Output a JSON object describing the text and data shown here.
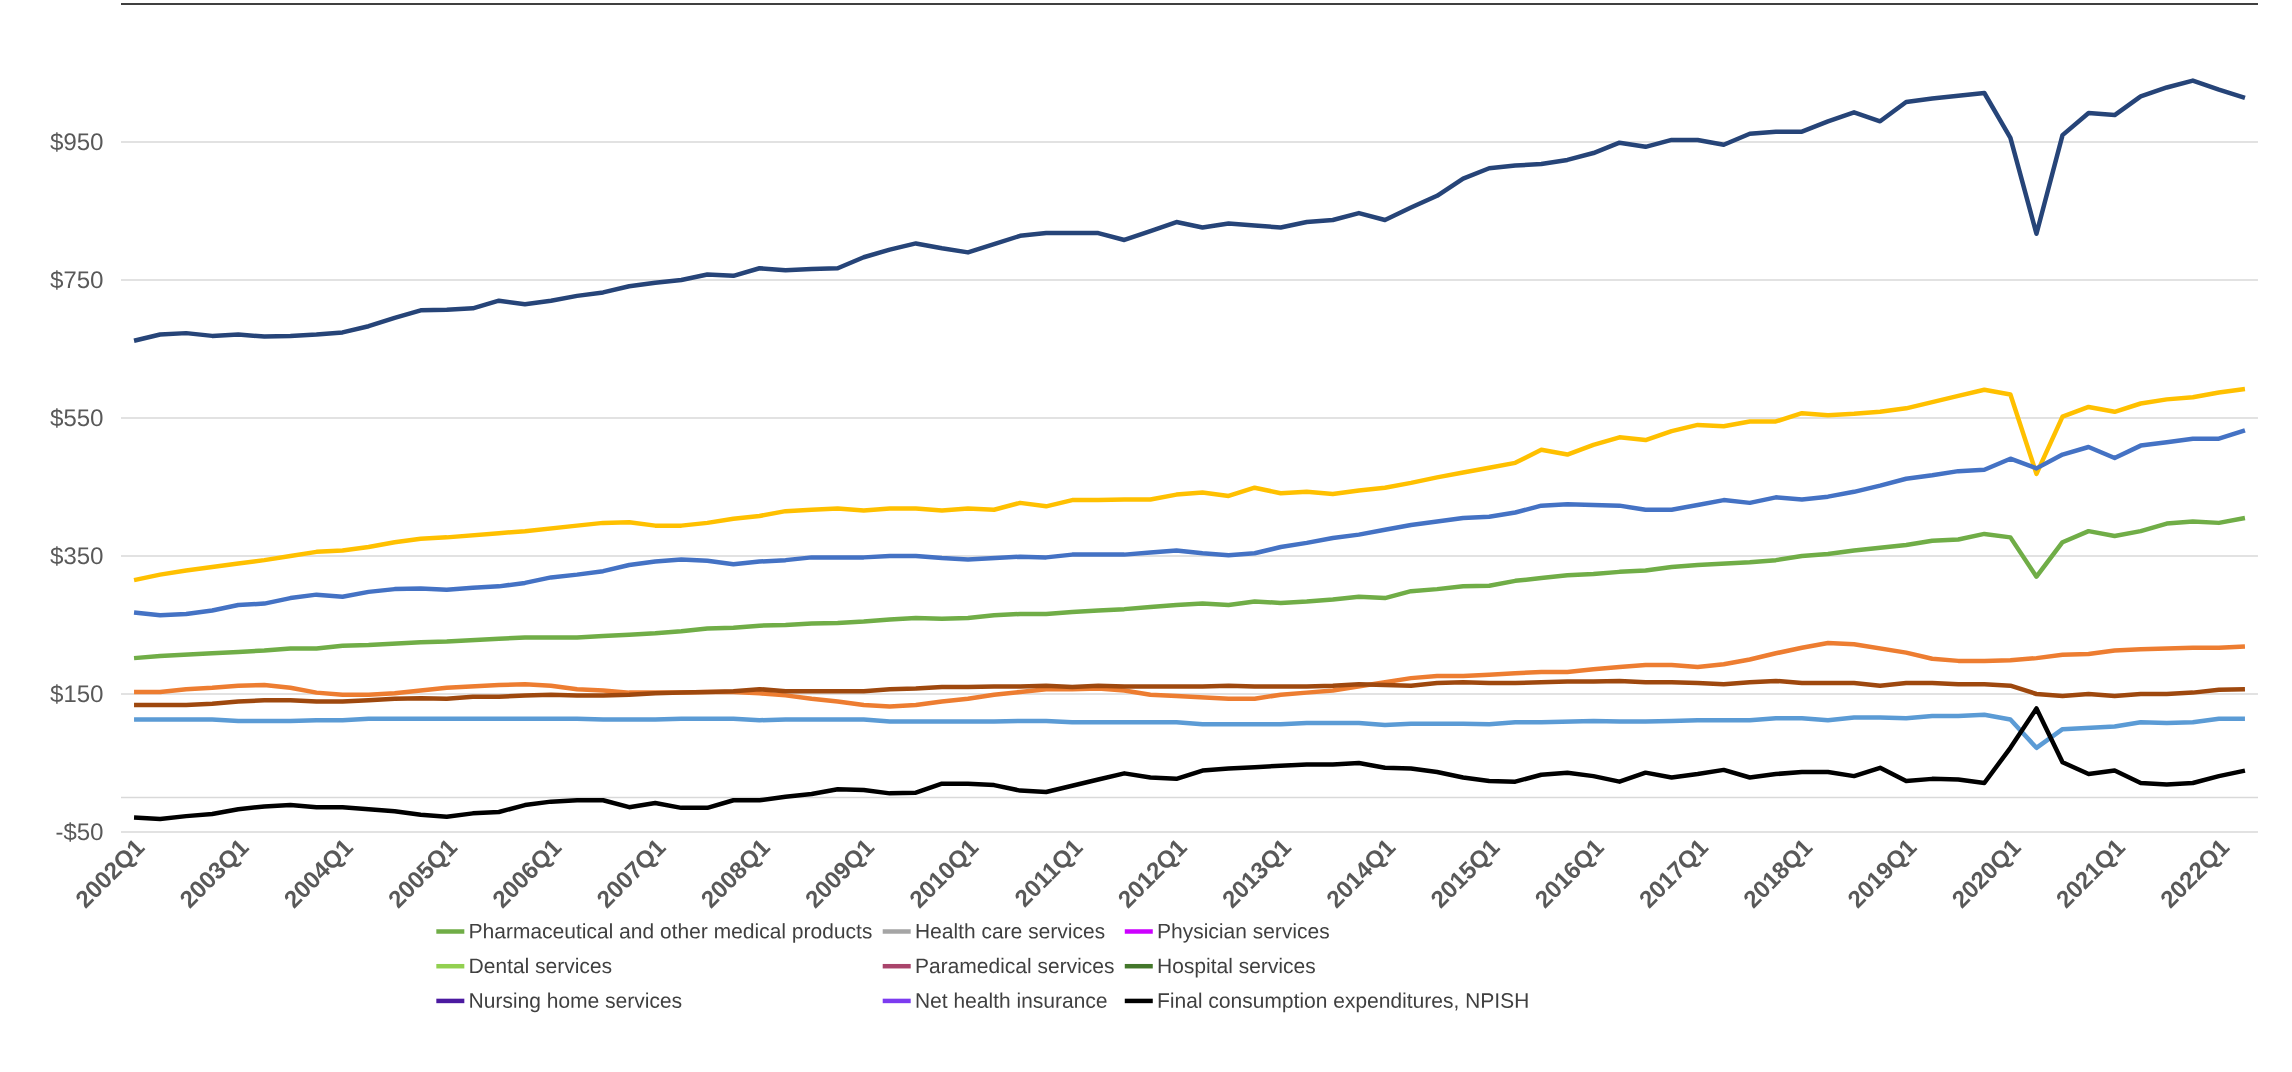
{
  "chart_data": {
    "type": "line",
    "categories": [
      "2002Q1",
      null,
      null,
      null,
      "2003Q1",
      null,
      null,
      null,
      "2004Q1",
      null,
      null,
      null,
      "2005Q1",
      null,
      null,
      null,
      "2006Q1",
      null,
      null,
      null,
      "2007Q1",
      null,
      null,
      null,
      "2008Q1",
      null,
      null,
      null,
      "2009Q1",
      null,
      null,
      null,
      "2010Q1",
      null,
      null,
      null,
      "2011Q1",
      null,
      null,
      null,
      "2012Q1",
      null,
      null,
      null,
      "2013Q1",
      null,
      null,
      null,
      "2014Q1",
      null,
      null,
      null,
      "2015Q1",
      null,
      null,
      null,
      "2016Q1",
      null,
      null,
      null,
      "2017Q1",
      null,
      null,
      null,
      "2018Q1",
      null,
      null,
      null,
      "2019Q1",
      null,
      null,
      null,
      "2020Q1",
      null,
      null,
      null,
      "2021Q1",
      null,
      null,
      null,
      "2022Q1",
      null
    ],
    "ylim": [
      -50,
      1150
    ],
    "yticks": [
      {
        "value": -50,
        "label": "-$50"
      },
      {
        "value": 150,
        "label": "$150"
      },
      {
        "value": 350,
        "label": "$350"
      },
      {
        "value": 550,
        "label": "$550"
      },
      {
        "value": 750,
        "label": "$750"
      },
      {
        "value": 950,
        "label": "$950"
      }
    ],
    "grid": "y",
    "legend": "bottom",
    "marker": "none",
    "ref_lines": [
      {
        "axis": "y",
        "value": 0,
        "color": "#d9d9d9"
      }
    ],
    "series": [
      {
        "color": "#264478",
        "values": [
          662,
          671,
          673,
          669,
          671,
          668,
          669,
          671,
          674,
          683,
          695,
          706,
          707,
          709,
          720,
          715,
          720,
          727,
          732,
          741,
          746,
          750,
          758,
          756,
          767,
          764,
          766,
          767,
          783,
          794,
          803,
          796,
          790,
          802,
          814,
          818,
          818,
          818,
          808,
          821,
          834,
          826,
          832,
          829,
          826,
          834,
          837,
          847,
          837,
          855,
          872,
          897,
          912,
          916,
          918,
          924,
          934,
          949,
          943,
          953,
          953,
          946,
          962,
          965,
          965,
          980,
          993,
          980,
          1008,
          1013,
          1017,
          1021,
          956,
          817,
          960,
          992,
          989,
          1016,
          1029,
          1039,
          1026,
          1014
        ]
      },
      {
        "color": "#ffc000",
        "values": [
          315,
          323,
          329,
          334,
          339,
          344,
          350,
          356,
          358,
          363,
          370,
          375,
          377,
          380,
          383,
          386,
          390,
          394,
          398,
          399,
          394,
          394,
          398,
          404,
          408,
          415,
          417,
          419,
          416,
          419,
          419,
          416,
          419,
          417,
          427,
          422,
          431,
          431,
          432,
          432,
          439,
          442,
          437,
          449,
          441,
          443,
          440,
          445,
          449,
          456,
          464,
          471,
          478,
          485,
          504,
          497,
          511,
          522,
          518,
          531,
          540,
          538,
          545,
          545,
          557,
          554,
          556,
          559,
          564,
          573,
          582,
          591,
          584,
          469,
          552,
          566,
          559,
          571,
          577,
          580,
          587,
          592
        ]
      },
      {
        "color": "#4472c4",
        "values": [
          268,
          264,
          266,
          271,
          279,
          281,
          289,
          294,
          291,
          298,
          302,
          303,
          301,
          304,
          306,
          311,
          319,
          323,
          328,
          337,
          342,
          345,
          343,
          338,
          342,
          344,
          348,
          348,
          348,
          350,
          350,
          347,
          345,
          347,
          349,
          348,
          352,
          352,
          352,
          355,
          358,
          354,
          351,
          354,
          363,
          369,
          376,
          381,
          388,
          395,
          400,
          405,
          407,
          413,
          423,
          425,
          424,
          423,
          417,
          417,
          424,
          431,
          427,
          435,
          432,
          436,
          443,
          452,
          462,
          467,
          473,
          475,
          491,
          477,
          497,
          508,
          492,
          510,
          515,
          520,
          520,
          532
        ]
      },
      {
        "color": "#ed7d31",
        "values": [
          153,
          153,
          157,
          159,
          162,
          163,
          159,
          152,
          149,
          149,
          151,
          155,
          159,
          161,
          163,
          164,
          162,
          157,
          155,
          152,
          152,
          152,
          153,
          153,
          151,
          148,
          143,
          139,
          134,
          132,
          134,
          139,
          143,
          149,
          153,
          157,
          157,
          158,
          155,
          149,
          147,
          145,
          143,
          143,
          149,
          152,
          155,
          161,
          167,
          173,
          176,
          176,
          178,
          180,
          182,
          182,
          186,
          189,
          192,
          192,
          189,
          193,
          200,
          209,
          217,
          224,
          222,
          216,
          210,
          201,
          198,
          198,
          199,
          202,
          207,
          208,
          213,
          215,
          216,
          217,
          217,
          219
        ]
      },
      {
        "color": "#9e480e",
        "values": [
          134,
          134,
          134,
          136,
          139,
          141,
          141,
          139,
          139,
          141,
          143,
          144,
          143,
          146,
          146,
          148,
          149,
          148,
          148,
          149,
          151,
          152,
          153,
          154,
          157,
          154,
          154,
          154,
          154,
          157,
          158,
          160,
          160,
          161,
          161,
          162,
          160,
          162,
          161,
          161,
          161,
          161,
          162,
          161,
          161,
          161,
          162,
          164,
          163,
          162,
          166,
          167,
          166,
          166,
          167,
          168,
          168,
          169,
          167,
          167,
          166,
          164,
          167,
          169,
          166,
          166,
          166,
          162,
          166,
          166,
          164,
          164,
          162,
          150,
          147,
          150,
          147,
          150,
          150,
          152,
          156,
          157
        ]
      },
      {
        "color": "#5b9bd5",
        "values": [
          113,
          113,
          113,
          113,
          111,
          111,
          111,
          112,
          112,
          114,
          114,
          114,
          114,
          114,
          114,
          114,
          114,
          114,
          113,
          113,
          113,
          114,
          114,
          114,
          112,
          113,
          113,
          113,
          113,
          110,
          110,
          110,
          110,
          110,
          111,
          111,
          109,
          109,
          109,
          109,
          109,
          106,
          106,
          106,
          106,
          108,
          108,
          108,
          105,
          107,
          107,
          107,
          106,
          109,
          109,
          110,
          111,
          110,
          110,
          111,
          112,
          112,
          112,
          115,
          115,
          112,
          116,
          116,
          115,
          118,
          118,
          120,
          113,
          72,
          99,
          101,
          103,
          109,
          108,
          109,
          114,
          114
        ]
      },
      {
        "name": "Pharmaceutical and other medical products",
        "color": "#70ad47",
        "values": [
          202,
          205,
          207,
          209,
          211,
          213,
          216,
          216,
          220,
          221,
          223,
          225,
          226,
          228,
          230,
          232,
          232,
          232,
          234,
          236,
          238,
          241,
          245,
          246,
          249,
          250,
          252,
          253,
          255,
          258,
          260,
          259,
          260,
          264,
          266,
          266,
          269,
          271,
          273,
          276,
          279,
          281,
          279,
          284,
          282,
          284,
          287,
          291,
          289,
          299,
          302,
          306,
          307,
          314,
          318,
          322,
          324,
          327,
          329,
          334,
          337,
          339,
          341,
          344,
          350,
          353,
          358,
          362,
          366,
          372,
          374,
          382,
          377,
          320,
          370,
          386,
          379,
          386,
          397,
          400,
          398,
          405
        ]
      },
      {
        "name": "Health care services",
        "color": "#a5a5a5",
        "values": [
          null,
          null,
          null,
          null,
          null,
          null,
          null,
          null,
          null,
          null,
          null,
          null,
          null,
          null,
          null,
          null,
          null,
          null,
          null,
          null,
          null,
          null,
          null,
          null,
          null,
          null,
          null,
          null,
          null,
          null,
          null,
          null,
          null,
          null,
          null,
          null,
          null,
          null,
          null,
          null,
          null,
          null,
          null,
          null,
          null,
          null,
          null,
          null,
          null,
          null,
          null,
          null,
          null,
          null,
          null,
          null,
          null,
          null,
          null,
          null,
          null,
          null,
          null,
          null,
          null,
          null,
          null,
          null,
          null,
          null,
          null,
          null,
          null,
          null,
          null,
          null,
          null,
          null,
          null,
          null,
          null,
          null
        ]
      },
      {
        "name": "Physician services",
        "color": "#cc00ff",
        "values": [
          null,
          null,
          null,
          null,
          null,
          null,
          null,
          null,
          null,
          null,
          null,
          null,
          null,
          null,
          null,
          null,
          null,
          null,
          null,
          null,
          null,
          null,
          null,
          null,
          null,
          null,
          null,
          null,
          null,
          null,
          null,
          null,
          null,
          null,
          null,
          null,
          null,
          null,
          null,
          null,
          null,
          null,
          null,
          null,
          null,
          null,
          null,
          null,
          null,
          null,
          null,
          null,
          null,
          null,
          null,
          null,
          null,
          null,
          null,
          null,
          null,
          null,
          null,
          null,
          null,
          null,
          null,
          null,
          null,
          null,
          null,
          null,
          null,
          null,
          null,
          null,
          null,
          null,
          null,
          null,
          null,
          null
        ]
      },
      {
        "name": "Dental services",
        "color": "#92d050",
        "values": [
          null,
          null,
          null,
          null,
          null,
          null,
          null,
          null,
          null,
          null,
          null,
          null,
          null,
          null,
          null,
          null,
          null,
          null,
          null,
          null,
          null,
          null,
          null,
          null,
          null,
          null,
          null,
          null,
          null,
          null,
          null,
          null,
          null,
          null,
          null,
          null,
          null,
          null,
          null,
          null,
          null,
          null,
          null,
          null,
          null,
          null,
          null,
          null,
          null,
          null,
          null,
          null,
          null,
          null,
          null,
          null,
          null,
          null,
          null,
          null,
          null,
          null,
          null,
          null,
          null,
          null,
          null,
          null,
          null,
          null,
          null,
          null,
          null,
          null,
          null,
          null,
          null,
          null,
          null,
          null,
          null,
          null
        ]
      },
      {
        "name": "Paramedical services",
        "color": "#a9446b",
        "values": [
          null,
          null,
          null,
          null,
          null,
          null,
          null,
          null,
          null,
          null,
          null,
          null,
          null,
          null,
          null,
          null,
          null,
          null,
          null,
          null,
          null,
          null,
          null,
          null,
          null,
          null,
          null,
          null,
          null,
          null,
          null,
          null,
          null,
          null,
          null,
          null,
          null,
          null,
          null,
          null,
          null,
          null,
          null,
          null,
          null,
          null,
          null,
          null,
          null,
          null,
          null,
          null,
          null,
          null,
          null,
          null,
          null,
          null,
          null,
          null,
          null,
          null,
          null,
          null,
          null,
          null,
          null,
          null,
          null,
          null,
          null,
          null,
          null,
          null,
          null,
          null,
          null,
          null,
          null,
          null,
          null,
          null
        ]
      },
      {
        "name": "Hospital services",
        "color": "#43772b",
        "values": [
          null,
          null,
          null,
          null,
          null,
          null,
          null,
          null,
          null,
          null,
          null,
          null,
          null,
          null,
          null,
          null,
          null,
          null,
          null,
          null,
          null,
          null,
          null,
          null,
          null,
          null,
          null,
          null,
          null,
          null,
          null,
          null,
          null,
          null,
          null,
          null,
          null,
          null,
          null,
          null,
          null,
          null,
          null,
          null,
          null,
          null,
          null,
          null,
          null,
          null,
          null,
          null,
          null,
          null,
          null,
          null,
          null,
          null,
          null,
          null,
          null,
          null,
          null,
          null,
          null,
          null,
          null,
          null,
          null,
          null,
          null,
          null,
          null,
          null,
          null,
          null,
          null,
          null,
          null,
          null,
          null,
          null
        ]
      },
      {
        "name": "Nursing home services",
        "color": "#4b1aa0",
        "values": [
          null,
          null,
          null,
          null,
          null,
          null,
          null,
          null,
          null,
          null,
          null,
          null,
          null,
          null,
          null,
          null,
          null,
          null,
          null,
          null,
          null,
          null,
          null,
          null,
          null,
          null,
          null,
          null,
          null,
          null,
          null,
          null,
          null,
          null,
          null,
          null,
          null,
          null,
          null,
          null,
          null,
          null,
          null,
          null,
          null,
          null,
          null,
          null,
          null,
          null,
          null,
          null,
          null,
          null,
          null,
          null,
          null,
          null,
          null,
          null,
          null,
          null,
          null,
          null,
          null,
          null,
          null,
          null,
          null,
          null,
          null,
          null,
          null,
          null,
          null,
          null,
          null,
          null,
          null,
          null,
          null,
          null
        ]
      },
      {
        "name": "Net health insurance",
        "color": "#7c3bf0",
        "values": [
          null,
          null,
          null,
          null,
          null,
          null,
          null,
          null,
          null,
          null,
          null,
          null,
          null,
          null,
          null,
          null,
          null,
          null,
          null,
          null,
          null,
          null,
          null,
          null,
          null,
          null,
          null,
          null,
          null,
          null,
          null,
          null,
          null,
          null,
          null,
          null,
          null,
          null,
          null,
          null,
          null,
          null,
          null,
          null,
          null,
          null,
          null,
          null,
          null,
          null,
          null,
          null,
          null,
          null,
          null,
          null,
          null,
          null,
          null,
          null,
          null,
          null,
          null,
          null,
          null,
          null,
          null,
          null,
          null,
          null,
          null,
          null,
          null,
          null,
          null,
          null,
          null,
          null,
          null,
          null,
          null,
          null
        ]
      },
      {
        "name": "Final consumption expenditures, NPISH",
        "color": "#000000",
        "values": [
          -29,
          -31,
          -27,
          -24,
          -17,
          -13,
          -11,
          -14,
          -14,
          -17,
          -20,
          -25,
          -28,
          -23,
          -21,
          -11,
          -6,
          -4,
          -4,
          -14,
          -8,
          -15,
          -15,
          -4,
          -4,
          1,
          5,
          12,
          11,
          6,
          7,
          20,
          20,
          18,
          10,
          8,
          17,
          26,
          35,
          29,
          27,
          39,
          42,
          44,
          46,
          48,
          48,
          50,
          43,
          42,
          37,
          29,
          24,
          23,
          33,
          36,
          31,
          23,
          36,
          29,
          34,
          40,
          29,
          34,
          37,
          37,
          31,
          43,
          24,
          27,
          26,
          21,
          72,
          129,
          51,
          34,
          39,
          21,
          19,
          21,
          31,
          39
        ]
      }
    ]
  }
}
